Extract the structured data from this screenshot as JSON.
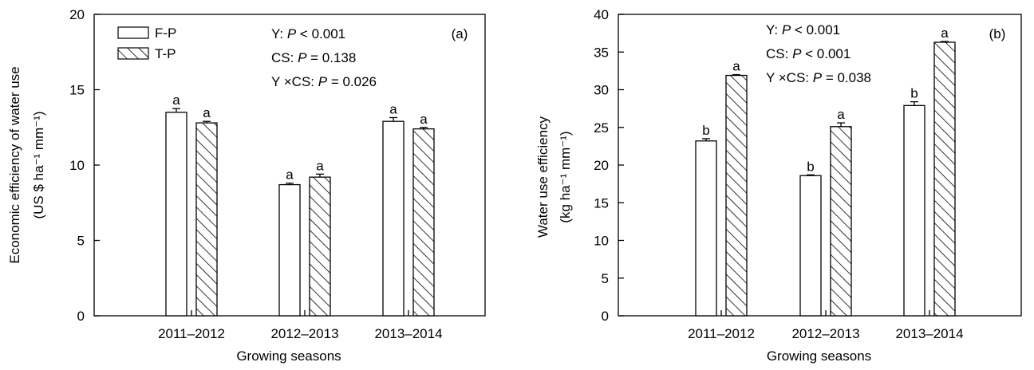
{
  "chart_data": [
    {
      "type": "bar",
      "panel_label": "(a)",
      "categories": [
        "2011–2012",
        "2012–2013",
        "2013–2014"
      ],
      "series": [
        {
          "name": "F-P",
          "values": [
            13.5,
            8.7,
            12.9
          ],
          "errors": [
            0.25,
            0.1,
            0.25
          ],
          "letters": [
            "a",
            "a",
            "a"
          ]
        },
        {
          "name": "T-P",
          "values": [
            12.8,
            9.2,
            12.4
          ],
          "errors": [
            0.1,
            0.2,
            0.1
          ],
          "letters": [
            "a",
            "a",
            "a"
          ]
        }
      ],
      "xlabel": "Growing seasons",
      "ylabel": "Economic efficiency of water use",
      "ylabel_unit": "(US $ ha⁻¹ mm⁻¹)",
      "ylim": [
        0,
        20
      ],
      "yticks": [
        "0",
        "5",
        "10",
        "15",
        "20"
      ],
      "stats": [
        {
          "term": "Y:",
          "op": "<",
          "val": "0.001"
        },
        {
          "term": "CS:",
          "op": "=",
          "val": "0.138"
        },
        {
          "term": "Y ×CS:",
          "op": "=",
          "val": "0.026"
        }
      ],
      "legend": {
        "placement": "top-left"
      }
    },
    {
      "type": "bar",
      "panel_label": "(b)",
      "categories": [
        "2011–2012",
        "2012–2013",
        "2013–2014"
      ],
      "series": [
        {
          "name": "F-P",
          "values": [
            23.2,
            18.6,
            27.9
          ],
          "errors": [
            0.3,
            0.1,
            0.5
          ],
          "letters": [
            "b",
            "b",
            "b"
          ]
        },
        {
          "name": "T-P",
          "values": [
            31.9,
            25.1,
            36.3
          ],
          "errors": [
            0.1,
            0.5,
            0.1
          ],
          "letters": [
            "a",
            "a",
            "a"
          ]
        }
      ],
      "xlabel": "Growing seasons",
      "ylabel": "Water use efficiency",
      "ylabel_unit": "(kg ha⁻¹ mm⁻¹)",
      "ylim": [
        0,
        40
      ],
      "yticks": [
        "0",
        "5",
        "10",
        "15",
        "20",
        "25",
        "30",
        "35",
        "40"
      ],
      "stats": [
        {
          "term": "Y:",
          "op": "<",
          "val": "0.001"
        },
        {
          "term": "CS:",
          "op": "<",
          "val": "0.001"
        },
        {
          "term": "Y ×CS:",
          "op": "=",
          "val": "0.038"
        }
      ]
    }
  ]
}
